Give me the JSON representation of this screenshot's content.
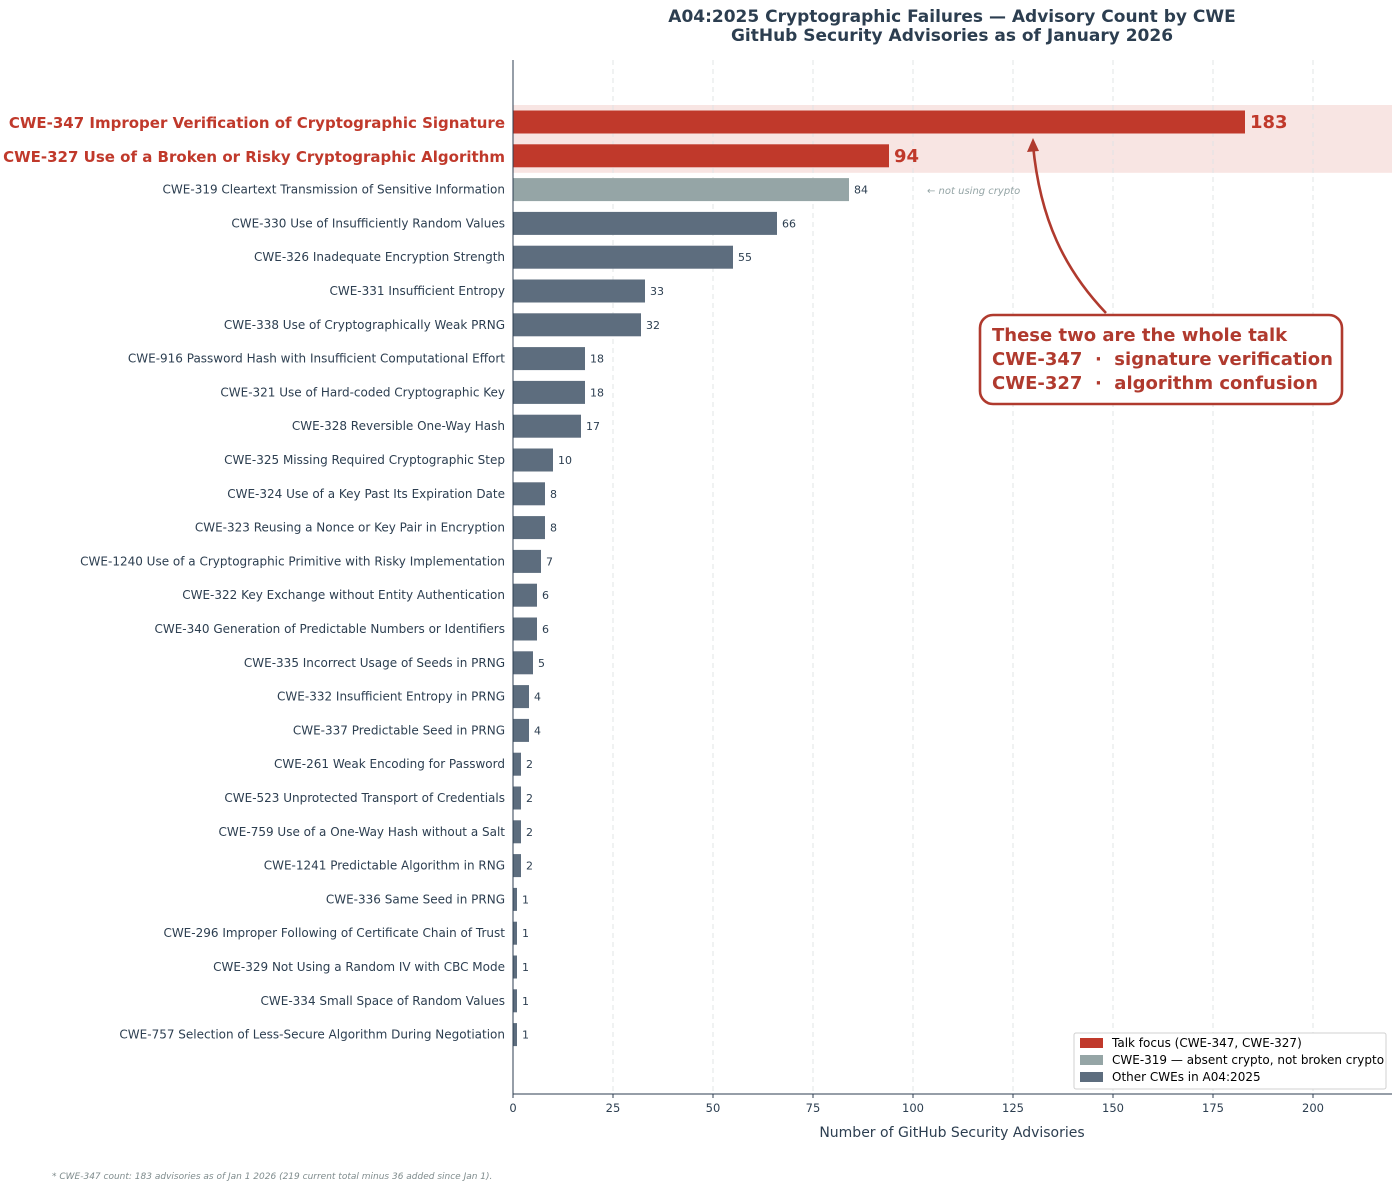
{
  "chart_data": {
    "type": "bar",
    "orientation": "horizontal",
    "title": "A04:2025 Cryptographic Failures — Advisory Count by CWE",
    "subtitle": "GitHub Security Advisories as of January 2026",
    "xlabel": "Number of GitHub Security Advisories",
    "ylabel": "",
    "xlim": [
      0,
      220
    ],
    "xticks": [
      0,
      25,
      50,
      75,
      100,
      125,
      150,
      175,
      200
    ],
    "grid": "x-dashed",
    "categories": [
      "CWE-347 Improper Verification of Cryptographic Signature",
      "CWE-327 Use of a Broken or Risky Cryptographic Algorithm",
      "CWE-319 Cleartext Transmission of Sensitive Information",
      "CWE-330 Use of Insufficiently Random Values",
      "CWE-326 Inadequate Encryption Strength",
      "CWE-331 Insufficient Entropy",
      "CWE-338 Use of Cryptographically Weak PRNG",
      "CWE-916 Password Hash with Insufficient Computational Effort",
      "CWE-321 Use of Hard-coded Cryptographic Key",
      "CWE-328 Reversible One-Way Hash",
      "CWE-325 Missing Required Cryptographic Step",
      "CWE-324 Use of a Key Past Its Expiration Date",
      "CWE-323 Reusing a Nonce or Key Pair in Encryption",
      "CWE-1240 Use of a Cryptographic Primitive with Risky Implementation",
      "CWE-322 Key Exchange without Entity Authentication",
      "CWE-340 Generation of Predictable Numbers or Identifiers",
      "CWE-335 Incorrect Usage of Seeds in PRNG",
      "CWE-332 Insufficient Entropy in PRNG",
      "CWE-337 Predictable Seed in PRNG",
      "CWE-261 Weak Encoding for Password",
      "CWE-523 Unprotected Transport of Credentials",
      "CWE-759 Use of a One-Way Hash without a Salt",
      "CWE-1241 Predictable Algorithm in RNG",
      "CWE-336 Same Seed in PRNG",
      "CWE-296 Improper Following of Certificate Chain of Trust",
      "CWE-329 Not Using a Random IV with CBC Mode",
      "CWE-334 Small Space of Random Values",
      "CWE-757 Selection of Less-Secure Algorithm During Negotiation"
    ],
    "values": [
      183,
      94,
      84,
      66,
      55,
      33,
      32,
      18,
      18,
      17,
      10,
      8,
      8,
      7,
      6,
      6,
      5,
      4,
      4,
      2,
      2,
      2,
      2,
      1,
      1,
      1,
      1,
      1
    ],
    "groups": [
      "focus",
      "focus",
      "absent",
      "other",
      "other",
      "other",
      "other",
      "other",
      "other",
      "other",
      "other",
      "other",
      "other",
      "other",
      "other",
      "other",
      "other",
      "other",
      "other",
      "other",
      "other",
      "other",
      "other",
      "other",
      "other",
      "other",
      "other",
      "other"
    ],
    "legend": {
      "position": "bottom-right",
      "entries": [
        {
          "key": "focus",
          "label": "Talk focus (CWE-347, CWE-327)"
        },
        {
          "key": "absent",
          "label": "CWE-319 — absent crypto, not broken crypto"
        },
        {
          "key": "other",
          "label": "Other CWEs in A04:2025"
        }
      ]
    },
    "colors": {
      "focus": "#c0392b",
      "absent": "#95a5a6",
      "other": "#5d6d7e",
      "focus_band": "#f8e5e3",
      "text": "#2c3e50",
      "note": "#95a5a6",
      "footnote": "#7f8c8d"
    },
    "annotations": {
      "side_note": "← not using crypto",
      "callout_lines": [
        "These two are the whole talk",
        "CWE-347  ·  signature verification",
        "CWE-327  ·  algorithm confusion"
      ]
    }
  },
  "footnote": "* CWE-347 count: 183 advisories as of Jan 1 2026 (219 current total minus 36 added since Jan 1)."
}
